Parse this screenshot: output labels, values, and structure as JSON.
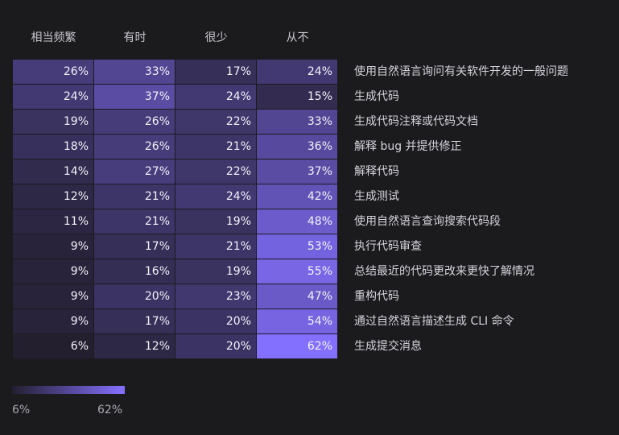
{
  "chart_data": {
    "type": "heatmap",
    "title": "",
    "columns": [
      "相当频繁",
      "有时",
      "很少",
      "从不"
    ],
    "rows": [
      {
        "label": "使用自然语言询问有关软件开发的一般问题",
        "values": [
          26,
          33,
          17,
          24
        ]
      },
      {
        "label": "生成代码",
        "values": [
          24,
          37,
          24,
          15
        ]
      },
      {
        "label": "生成代码注释或代码文档",
        "values": [
          19,
          26,
          22,
          33
        ]
      },
      {
        "label": "解释 bug 并提供修正",
        "values": [
          18,
          26,
          21,
          36
        ]
      },
      {
        "label": "解释代码",
        "values": [
          14,
          27,
          22,
          37
        ]
      },
      {
        "label": "生成测试",
        "values": [
          12,
          21,
          24,
          42
        ]
      },
      {
        "label": "使用自然语言查询搜索代码段",
        "values": [
          11,
          21,
          19,
          48
        ]
      },
      {
        "label": "执行代码审查",
        "values": [
          9,
          17,
          21,
          53
        ]
      },
      {
        "label": "总结最近的代码更改来更快了解情况",
        "values": [
          9,
          16,
          19,
          55
        ]
      },
      {
        "label": "重构代码",
        "values": [
          9,
          20,
          23,
          47
        ]
      },
      {
        "label": "通过自然语言描述生成 CLI 命令",
        "values": [
          9,
          17,
          20,
          54
        ]
      },
      {
        "label": "生成提交消息",
        "values": [
          6,
          12,
          20,
          62
        ]
      }
    ],
    "unit": "%",
    "legend": {
      "min": 6,
      "max": 62,
      "min_label": "6%",
      "max_label": "62%",
      "position": "bottom-left"
    },
    "color_scale": {
      "low": "#231f2f",
      "high": "#8470ff"
    }
  }
}
